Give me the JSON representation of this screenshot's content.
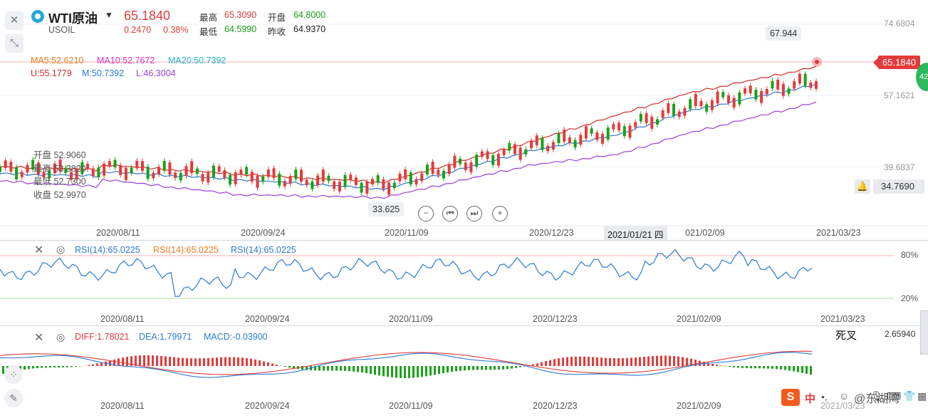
{
  "header": {
    "symbol_name": "WTI原油",
    "symbol_code": "USOIL",
    "last_price": "65.1840",
    "change": "0.2470",
    "change_pct": "0.38%",
    "high_label": "最高",
    "high_value": "65.3090",
    "open_label": "开盘",
    "open_value": "64.8000",
    "low_label": "最低",
    "low_value": "64.5990",
    "prev_close_label": "昨收",
    "prev_close_value": "64.9370"
  },
  "ma_legend": {
    "ma5": "MA5:52.6210",
    "ma10": "MA10:52.7672",
    "ma20": "MA20:50.7392",
    "boll_u": "U:55.1779",
    "boll_m": "M:50.7392",
    "boll_l": "L:46.3004"
  },
  "hover_info": {
    "open": "开盘 52.9060",
    "high": "最高 53.3820",
    "low": "最低 52.7300",
    "close": "收盘 52.9970"
  },
  "main_chart": {
    "y_ticks": [
      "74.6804",
      "57.1621",
      "39.6837"
    ],
    "current_price_tag": "65.1840",
    "alert_price": "34.7690",
    "max_marker": "67.944",
    "min_marker": "33.625",
    "x_ticks": [
      "2020/08/11",
      "2020/09/24",
      "2020/11/09",
      "2020/12/23",
      "021/02/09",
      "2021/03/23"
    ],
    "crosshair_date": "2021/01/21 四",
    "badge": "42"
  },
  "rsi": {
    "legend": [
      "RSI(14):65.0225",
      "RSI(14):65.0225",
      "RSI(14):65.0225"
    ],
    "y_ticks": [
      "80%",
      "20%"
    ],
    "x_ticks": [
      "2020/08/11",
      "2020/09/24",
      "2020/11/09",
      "2020/12/23",
      "2021/02/09",
      "2021/03/23"
    ]
  },
  "macd": {
    "diff": "DIFF:1.78021",
    "dea": "DEA:1.79971",
    "macd": "MACD:-0.03900",
    "y_tick": "2.65940",
    "annotation": "死叉",
    "x_ticks": [
      "2020/08/11",
      "2020/09/24",
      "2020/11/09",
      "2020/12/23",
      "2021/02/09",
      "2021/03/23"
    ]
  },
  "ime_bar": {
    "logo": "S",
    "lang": "中",
    "watermark": "@东湖湾"
  },
  "colors": {
    "up": "#e33b3b",
    "down": "#1aa11a",
    "ma5": "#f07d1a",
    "ma10": "#e030c0",
    "ma20": "#1fb8c8",
    "boll_u": "#d22b2b",
    "boll_m": "#2a7bd4",
    "boll_l": "#a040d8"
  },
  "chart_data": {
    "type": "line",
    "title": "WTI原油",
    "x": [
      "2020/08/11",
      "2020/09/24",
      "2020/11/09",
      "2020/12/23",
      "2021/01/21",
      "2021/02/09",
      "2021/03/23"
    ],
    "series": [
      {
        "name": "MA20",
        "values": [
          42.5,
          40.6,
          38.5,
          47.0,
          50.7,
          56.0,
          62.0
        ]
      },
      {
        "name": "U",
        "values": [
          44.0,
          41.8,
          40.0,
          49.0,
          55.2,
          60.0,
          66.0
        ]
      },
      {
        "name": "L",
        "values": [
          40.8,
          37.2,
          36.6,
          43.8,
          46.3,
          51.0,
          58.0
        ]
      }
    ],
    "ylim": [
      33.0,
      75.0
    ]
  }
}
